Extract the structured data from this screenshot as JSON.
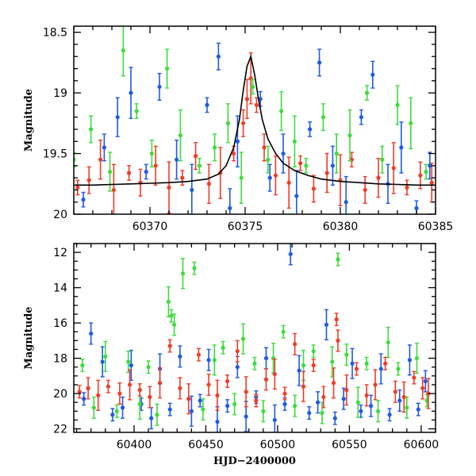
{
  "colors": {
    "red": "#f03c28",
    "blue": "#1e5ae6",
    "green": "#3cdc3c",
    "model": "#000000"
  },
  "chart_data": [
    {
      "type": "scatter",
      "title": "",
      "xlabel": "",
      "ylabel": "Magnitude",
      "xlim": [
        60366,
        60385
      ],
      "ylim": [
        20.0,
        18.45
      ],
      "y_inverted": true,
      "xticks": [
        60370,
        60375,
        60380,
        60385
      ],
      "yticks": [
        18.5,
        19,
        19.5,
        20
      ],
      "xtick_labels": [
        "60370",
        "60375",
        "60380",
        "60385"
      ],
      "ytick_labels": [
        "18.5",
        "19",
        "19.5",
        "20"
      ],
      "grid": false,
      "legend": "none",
      "series": [
        {
          "color": "red",
          "x": [
            60366.2,
            60366.8,
            60367.4,
            60368.1,
            60368.9,
            60369.5,
            60370.3,
            60371.0,
            60371.7,
            60372.4,
            60373.1,
            60373.7,
            60374.4,
            60374.9,
            60375.1,
            60375.3,
            60375.6,
            60376.0,
            60376.6,
            60377.3,
            60377.9,
            60378.6,
            60379.3,
            60380.0,
            60380.6,
            60381.3,
            60382.0,
            60382.8,
            60383.5,
            60384.2,
            60384.8
          ],
          "y": [
            19.78,
            19.72,
            19.55,
            19.8,
            19.66,
            19.74,
            19.6,
            19.78,
            19.7,
            19.52,
            19.75,
            19.66,
            19.5,
            19.25,
            19.05,
            18.88,
            19.1,
            19.45,
            19.68,
            19.74,
            19.58,
            19.79,
            19.66,
            19.72,
            19.55,
            19.8,
            19.7,
            19.62,
            19.78,
            19.68,
            19.74
          ]
        },
        {
          "color": "blue",
          "x": [
            60366.5,
            60367.6,
            60368.3,
            60369.0,
            60369.8,
            60370.5,
            60371.4,
            60372.2,
            60373.0,
            60373.6,
            60374.2,
            60374.6,
            60375.8,
            60376.3,
            60377.0,
            60377.7,
            60378.4,
            60378.9,
            60379.6,
            60380.3,
            60381.1,
            60381.7,
            60382.5,
            60383.2,
            60384.0,
            60384.7
          ],
          "y": [
            19.88,
            19.45,
            19.2,
            19.0,
            19.65,
            18.95,
            19.55,
            19.8,
            19.1,
            18.7,
            19.95,
            19.4,
            19.05,
            19.7,
            19.5,
            19.85,
            19.3,
            18.75,
            19.6,
            19.9,
            19.2,
            18.85,
            19.75,
            19.45,
            19.95,
            19.6
          ]
        },
        {
          "color": "green",
          "x": [
            60366.0,
            60366.9,
            60367.9,
            60368.6,
            60369.3,
            60370.1,
            60370.9,
            60371.6,
            60372.6,
            60373.4,
            60374.1,
            60374.8,
            60375.4,
            60376.2,
            60376.9,
            60377.6,
            60378.2,
            60379.1,
            60379.8,
            60380.5,
            60381.4,
            60382.2,
            60383.0,
            60383.7,
            60384.5
          ],
          "y": [
            19.55,
            19.3,
            19.65,
            18.65,
            19.15,
            19.5,
            18.8,
            19.35,
            19.6,
            19.45,
            19.25,
            19.7,
            18.95,
            19.55,
            19.15,
            19.4,
            19.6,
            19.2,
            19.5,
            19.35,
            19.0,
            19.55,
            19.1,
            19.25,
            19.65
          ]
        },
        {
          "name": "",
          "color": "model",
          "kind": "line",
          "x": [
            60366,
            60367,
            60368,
            60369,
            60370,
            60371,
            60372,
            60373,
            60373.6,
            60374.0,
            60374.4,
            60374.7,
            60374.9,
            60375.1,
            60375.3,
            60375.5,
            60375.7,
            60375.9,
            60376.2,
            60376.6,
            60377.0,
            60377.6,
            60378.3,
            60379.0,
            60380,
            60381,
            60382,
            60383,
            60384,
            60385
          ],
          "y": [
            19.76,
            19.76,
            19.755,
            19.75,
            19.745,
            19.74,
            19.73,
            19.71,
            19.67,
            19.6,
            19.45,
            19.22,
            18.98,
            18.78,
            18.7,
            18.85,
            19.05,
            19.22,
            19.38,
            19.5,
            19.58,
            19.64,
            19.68,
            19.71,
            19.73,
            19.74,
            19.75,
            19.755,
            19.76,
            19.76
          ]
        }
      ]
    },
    {
      "type": "scatter",
      "title": "",
      "xlabel": "HJD−2400000",
      "ylabel": "Magnitude",
      "xlim": [
        60358,
        60610
      ],
      "ylim": [
        22.2,
        11.5
      ],
      "y_inverted": true,
      "xticks": [
        60400,
        60450,
        60500,
        60550,
        60600
      ],
      "yticks": [
        12,
        14,
        16,
        18,
        20,
        22
      ],
      "xtick_labels": [
        "60400",
        "60450",
        "60500",
        "60550",
        "60600"
      ],
      "ytick_labels": [
        "12",
        "14",
        "16",
        "18",
        "20",
        "22"
      ],
      "grid": false,
      "legend": "none",
      "series": [
        {
          "color": "blue",
          "x": [
            60365,
            60370,
            60378,
            60385,
            60392,
            60398,
            60405,
            60412,
            60418,
            60425,
            60432,
            60440,
            60446,
            60452,
            60458,
            60465,
            60472,
            60478,
            60485,
            60492,
            60498,
            60505,
            60509,
            60515,
            60522,
            60528,
            60534,
            60540,
            60546,
            60552,
            60558,
            60565,
            60572,
            60578,
            60585,
            60592,
            60598,
            60603
          ],
          "y": [
            20.3,
            16.6,
            18.2,
            21.2,
            20.8,
            18.4,
            20.6,
            21.4,
            18.6,
            20.9,
            17.9,
            21.0,
            20.4,
            18.1,
            21.6,
            20.7,
            18.5,
            21.3,
            20.2,
            18.0,
            21.5,
            20.6,
            12.1,
            18.7,
            21.1,
            20.5,
            16.1,
            21.4,
            20.3,
            18.3,
            21.0,
            20.7,
            18.6,
            21.2,
            20.4,
            18.1,
            20.9,
            19.3
          ]
        },
        {
          "color": "green",
          "x": [
            60364,
            60372,
            60380,
            60388,
            60396,
            60404,
            60410,
            60416,
            60424,
            60426,
            60428,
            60434,
            60442,
            60448,
            60456,
            60462,
            60470,
            60476,
            60484,
            60490,
            60497,
            60504,
            60512,
            60518,
            60525,
            60531,
            60538,
            60542,
            60548,
            60556,
            60562,
            60570,
            60577,
            60584,
            60590,
            60597,
            60604
          ],
          "y": [
            18.4,
            20.8,
            17.9,
            21.0,
            18.2,
            20.6,
            18.5,
            21.2,
            14.8,
            15.6,
            16.1,
            13.2,
            12.9,
            20.9,
            18.1,
            17.4,
            20.6,
            16.9,
            18.3,
            21.0,
            18.0,
            16.5,
            20.7,
            18.4,
            17.6,
            21.1,
            18.2,
            12.4,
            17.8,
            20.5,
            18.3,
            21.0,
            17.1,
            18.6,
            20.8,
            18.0,
            20.4
          ]
        },
        {
          "color": "red",
          "x": [
            60362,
            60368,
            60375,
            60382,
            60390,
            60397,
            60404,
            60411,
            60418,
            60425,
            60432,
            60438,
            60445,
            60452,
            60458,
            60465,
            60472,
            60478,
            60485,
            60492,
            60498,
            60505,
            60512,
            60518,
            60525,
            60532,
            60539,
            60541,
            60542,
            60548,
            60555,
            60562,
            60568,
            60575,
            60582,
            60588,
            60595,
            60601,
            60605
          ],
          "y": [
            19.9,
            19.7,
            20.1,
            19.6,
            20.0,
            19.5,
            19.8,
            20.2,
            19.4,
            17.3,
            19.7,
            20.3,
            17.8,
            19.5,
            20.1,
            19.3,
            17.6,
            19.9,
            20.4,
            19.2,
            18.9,
            20.0,
            17.2,
            19.6,
            18.4,
            20.2,
            19.4,
            15.8,
            17.0,
            19.8,
            18.6,
            20.1,
            19.5,
            18.3,
            19.9,
            20.2,
            19.1,
            19.7,
            20.0
          ]
        }
      ]
    }
  ]
}
